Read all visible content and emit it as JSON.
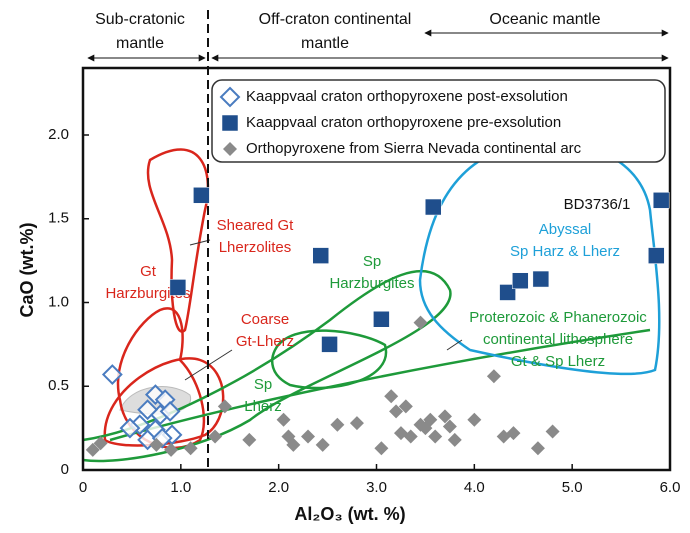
{
  "chart_data": {
    "type": "scatter",
    "x_label": "Al₂O₃ (wt. %)",
    "y_label": "CaO (wt.%)",
    "xlim": [
      0,
      6
    ],
    "ylim": [
      0,
      2.4
    ],
    "xticks": [
      0,
      {
        "value": 1,
        "label": "1.0"
      },
      {
        "value": 2,
        "label": "2.0"
      },
      {
        "value": 3,
        "label": "3.0"
      },
      {
        "value": 4,
        "label": "4.0"
      },
      {
        "value": 5,
        "label": "5.0"
      },
      {
        "value": 6,
        "label": "6.0"
      }
    ],
    "yticks": [
      0,
      0.5,
      {
        "value": 1,
        "label": "1.0"
      },
      1.5,
      {
        "value": 2,
        "label": "2.0"
      }
    ],
    "grid": false,
    "headers": [
      [
        "Sub-cratonic",
        "mantle"
      ],
      [
        "Off-craton continental",
        "mantle"
      ],
      [
        "Oceanic mantle"
      ]
    ],
    "annotations": [
      {
        "lines": [
          "Sheared Gt",
          "Lherzolites"
        ],
        "color": "#d9261c"
      },
      {
        "lines": [
          "Gt",
          "Harzburgites"
        ],
        "color": "#d9261c"
      },
      {
        "lines": [
          "Coarse",
          "Gt-Lherz"
        ],
        "color": "#d9261c"
      },
      {
        "lines": [
          "Sp",
          "Harzburgites"
        ],
        "color": "#1e9a3a"
      },
      {
        "lines": [
          "Sp",
          "Lherz"
        ],
        "color": "#1e9a3a"
      },
      {
        "lines": [
          "Abyssal",
          "Sp Harz & Lherz"
        ],
        "color": "#1ea0d8"
      },
      {
        "lines": [
          "Proterozoic & Phanerozoic",
          "continental lithosphere",
          "Gt & Sp Lherz"
        ],
        "color": "#1e9a3a"
      },
      {
        "lines": [
          "BD3736/1"
        ],
        "color": "#111111"
      }
    ],
    "series": [
      {
        "name": "Kaappvaal craton orthopyroxene post-exsolution",
        "color": "#4a7cc0",
        "marker": "diamond-open",
        "x": [
          0.3,
          0.74,
          0.84,
          0.79,
          0.66,
          0.89,
          0.58,
          0.74,
          0.91,
          0.66,
          0.81,
          0.48
        ],
        "values": [
          0.57,
          0.45,
          0.42,
          0.33,
          0.36,
          0.35,
          0.27,
          0.24,
          0.21,
          0.18,
          0.19,
          0.25
        ]
      },
      {
        "name": "Kaappvaal craton orthopyroxene pre-exsolution",
        "color": "#1f4e8c",
        "marker": "square",
        "x": [
          1.21,
          0.97,
          2.43,
          3.58,
          2.52,
          3.05,
          4.34,
          4.47,
          4.68,
          5.86,
          5.91
        ],
        "values": [
          1.64,
          1.09,
          1.28,
          1.57,
          0.75,
          0.9,
          1.06,
          1.13,
          1.14,
          1.28,
          1.61
        ]
      },
      {
        "name": "Orthopyroxene from Sierra Nevada continental arc",
        "color": "#8a8a8a",
        "marker": "diamond",
        "x": [
          0.1,
          0.18,
          0.75,
          0.9,
          1.1,
          1.35,
          1.45,
          1.7,
          2.05,
          2.1,
          2.15,
          2.3,
          2.45,
          2.6,
          2.8,
          3.05,
          3.15,
          3.2,
          3.25,
          3.3,
          3.35,
          3.45,
          3.45,
          3.5,
          3.55,
          3.6,
          3.7,
          3.75,
          3.8,
          4.0,
          4.2,
          4.3,
          4.4,
          4.65,
          4.8
        ],
        "values": [
          0.12,
          0.16,
          0.15,
          0.12,
          0.13,
          0.2,
          0.38,
          0.18,
          0.3,
          0.2,
          0.15,
          0.2,
          0.15,
          0.27,
          0.28,
          0.13,
          0.44,
          0.35,
          0.22,
          0.38,
          0.2,
          0.27,
          0.88,
          0.25,
          0.3,
          0.2,
          0.32,
          0.26,
          0.18,
          0.3,
          0.56,
          0.2,
          0.22,
          0.13,
          0.23
        ]
      }
    ]
  }
}
